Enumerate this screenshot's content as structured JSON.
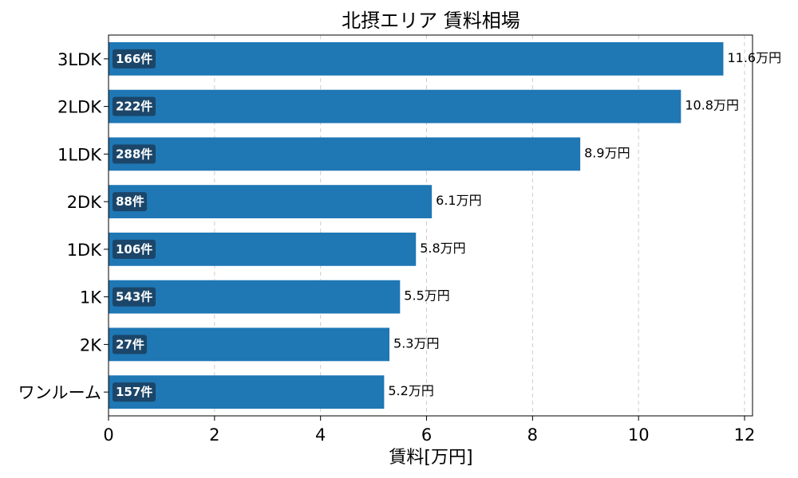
{
  "chart_data": {
    "type": "bar",
    "orientation": "horizontal",
    "title": "北摂エリア 賃料相場",
    "xlabel": "賃料[万円]",
    "ylabel": "",
    "xlim": [
      0,
      12.15
    ],
    "xticks": [
      "0",
      "2",
      "4",
      "6",
      "8",
      "10",
      "12"
    ],
    "xtick_values": [
      0,
      2,
      4,
      6,
      8,
      10,
      12
    ],
    "grid": "x-dashed",
    "categories": [
      "3LDK",
      "2LDK",
      "1LDK",
      "2DK",
      "1DK",
      "1K",
      "2K",
      "ワンルーム"
    ],
    "values": [
      11.6,
      10.8,
      8.9,
      6.1,
      5.8,
      5.5,
      5.3,
      5.2
    ],
    "value_labels": [
      "11.6万円",
      "10.8万円",
      "8.9万円",
      "6.1万円",
      "5.8万円",
      "5.5万円",
      "5.3万円",
      "5.2万円"
    ],
    "count_labels": [
      "166件",
      "222件",
      "288件",
      "88件",
      "106件",
      "543件",
      "27件",
      "157件"
    ],
    "colors": {
      "bar": "#1f77b4",
      "badge": "#1b3d5c",
      "grid": "#cccccc"
    }
  }
}
